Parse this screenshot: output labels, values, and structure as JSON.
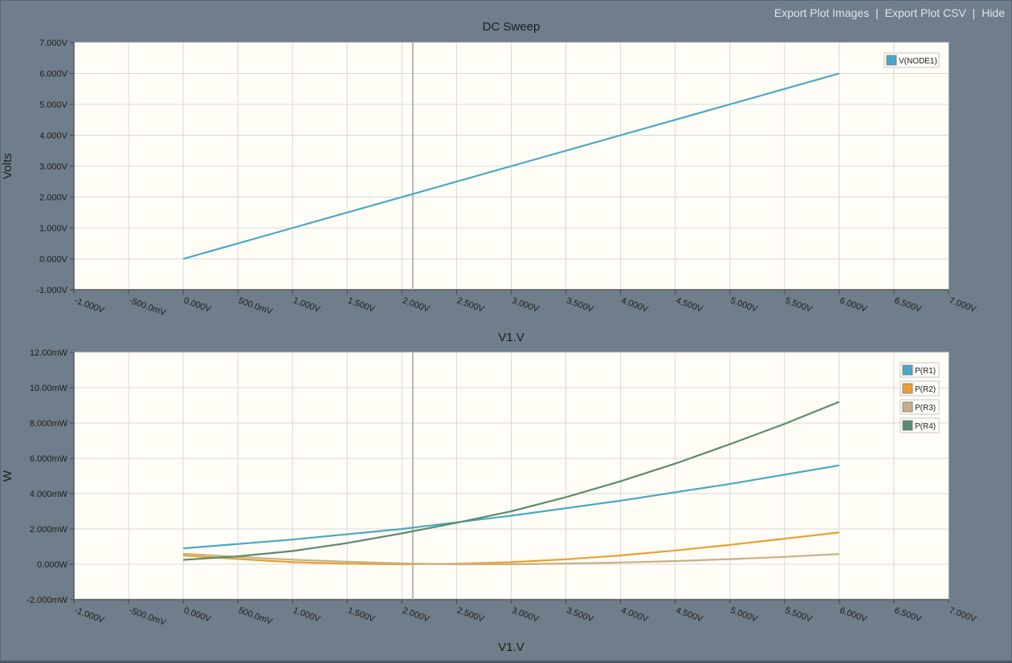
{
  "toolbar": {
    "export_images": "Export Plot Images",
    "export_csv": "Export Plot CSV",
    "hide": "Hide",
    "separator": "|"
  },
  "colors": {
    "background": "#6f7e8a",
    "plot_bg": "#fffdf6",
    "grid": "#d9d9d9",
    "cursor": "#b9b9b9"
  },
  "chart_data": [
    {
      "type": "line",
      "title": "DC Sweep",
      "xlabel": "V1.V",
      "ylabel": "Volts",
      "xlim": [
        -1,
        7
      ],
      "ylim": [
        -1,
        7
      ],
      "grid": true,
      "legend_position": "top-right",
      "x_ticks": [
        "-1.000V",
        "-500.0mV",
        "0.000V",
        "500.0mV",
        "1.000V",
        "1.500V",
        "2.000V",
        "2.500V",
        "3.000V",
        "3.500V",
        "4.000V",
        "4.500V",
        "5.000V",
        "5.500V",
        "6.000V",
        "6.500V",
        "7.000V"
      ],
      "y_ticks": [
        "-1.000V",
        "0.000V",
        "1.000V",
        "2.000V",
        "3.000V",
        "4.000V",
        "5.000V",
        "6.000V",
        "7.000V"
      ],
      "cursor_x": 2.1,
      "series": [
        {
          "name": "V(NODE1)",
          "color": "#4aa8c4",
          "x": [
            0,
            1,
            2,
            3,
            4,
            5,
            6
          ],
          "y": [
            0,
            1,
            2,
            3,
            4,
            5,
            6
          ]
        }
      ]
    },
    {
      "type": "line",
      "title": "",
      "xlabel": "V1.V",
      "ylabel": "W",
      "xlim": [
        -1,
        7
      ],
      "ylim": [
        -2,
        12
      ],
      "grid": true,
      "legend_position": "top-right",
      "x_ticks": [
        "-1.000V",
        "-500.0mV",
        "0.000V",
        "500.0mV",
        "1.000V",
        "1.500V",
        "2.000V",
        "2.500V",
        "3.000V",
        "3.500V",
        "4.000V",
        "4.500V",
        "5.000V",
        "5.500V",
        "6.000V",
        "6.500V",
        "7.000V"
      ],
      "y_ticks": [
        "-2.000mW",
        "0.000W",
        "2.000mW",
        "4.000mW",
        "6.000mW",
        "8.000mW",
        "10.00mW",
        "12.00mW"
      ],
      "cursor_x": 2.1,
      "series": [
        {
          "name": "P(R1)",
          "color": "#4aa8c4",
          "x": [
            0,
            1,
            2,
            3,
            4,
            5,
            6
          ],
          "y": [
            0.9,
            1.4,
            2.0,
            2.75,
            3.6,
            4.55,
            5.6
          ]
        },
        {
          "name": "P(R2)",
          "color": "#e8a030",
          "x": [
            0,
            0.5,
            1,
            1.5,
            2,
            2.5,
            3,
            3.5,
            4,
            4.5,
            5,
            5.5,
            6
          ],
          "y": [
            0.5,
            0.3,
            0.12,
            0.03,
            0.0,
            0.03,
            0.12,
            0.28,
            0.5,
            0.78,
            1.1,
            1.45,
            1.8
          ]
        },
        {
          "name": "P(R3)",
          "color": "#c8b084",
          "x": [
            0,
            0.5,
            1,
            1.5,
            2,
            2.5,
            3,
            3.5,
            4,
            4.5,
            5,
            5.5,
            6
          ],
          "y": [
            0.6,
            0.42,
            0.26,
            0.14,
            0.05,
            0.0,
            0.0,
            0.04,
            0.1,
            0.18,
            0.29,
            0.42,
            0.58
          ]
        },
        {
          "name": "P(R4)",
          "color": "#5a8c6e",
          "x": [
            0,
            0.5,
            1,
            1.5,
            2,
            2.5,
            3,
            3.5,
            4,
            4.5,
            5,
            5.5,
            6
          ],
          "y": [
            0.25,
            0.45,
            0.75,
            1.2,
            1.75,
            2.35,
            3.0,
            3.8,
            4.7,
            5.7,
            6.8,
            7.95,
            9.2
          ]
        }
      ]
    }
  ]
}
